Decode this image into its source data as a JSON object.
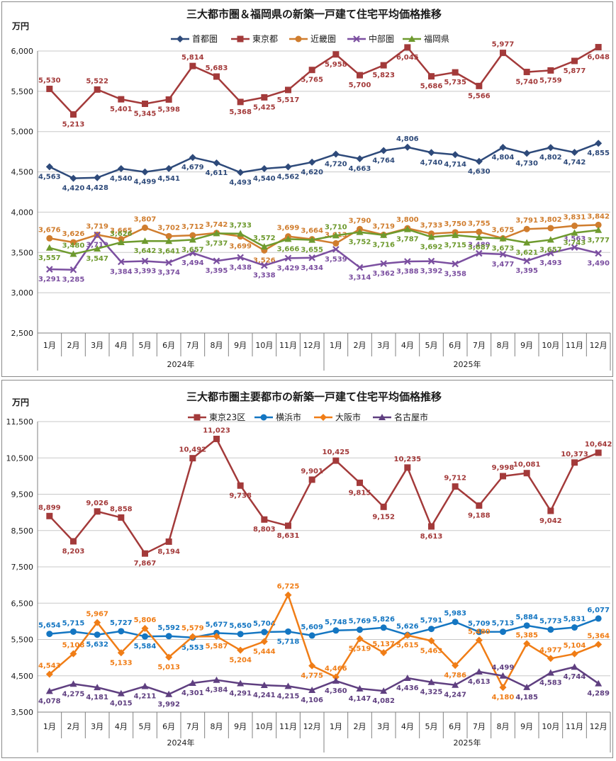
{
  "colors": {
    "navy": "#2E4A7A",
    "red": "#A33A3A",
    "orange": "#D07D2E",
    "purple": "#7B4FA0",
    "green": "#6E9A2E",
    "blue": "#1476C2",
    "orange2": "#F07D16",
    "plum": "#5F3F80"
  },
  "chart_data": [
    {
      "type": "line",
      "title": "三大都市圏＆福岡県の新築一戸建て住宅平均価格推移",
      "ylabel": "万円",
      "ylim": [
        2500,
        6000
      ],
      "yticks": [
        "2,500",
        "3,000",
        "3,500",
        "4,000",
        "4,500",
        "5,000",
        "5,500",
        "6,000"
      ],
      "ytick_values": [
        2500,
        3000,
        3500,
        4000,
        4500,
        5000,
        5500,
        6000
      ],
      "categories": [
        "1月",
        "2月",
        "3月",
        "4月",
        "5月",
        "6月",
        "7月",
        "8月",
        "9月",
        "10月",
        "11月",
        "12月",
        "1月",
        "2月",
        "3月",
        "4月",
        "5月",
        "6月",
        "7月",
        "8月",
        "9月",
        "10月",
        "11月",
        "12月"
      ],
      "years": [
        "2024年",
        "2025年"
      ],
      "grid": true,
      "legend": "top",
      "series": [
        {
          "name": "首都圏",
          "color": "#2E4A7A",
          "marker": "diamond",
          "values": [
            4563,
            4420,
            4428,
            4540,
            4499,
            4541,
            4679,
            4611,
            4493,
            4540,
            4562,
            4620,
            4720,
            4663,
            4764,
            4806,
            4740,
            4714,
            4630,
            4804,
            4730,
            4802,
            4742,
            4855
          ],
          "labels": [
            "4,563",
            "4,420",
            "4,428",
            "4,540",
            "4,499",
            "4,541",
            "4,679",
            "4,611",
            "4,493",
            "4,540",
            "4,562",
            "4,620",
            "4,720",
            "4,663",
            "4,764",
            "4,806",
            "4,740",
            "4,714",
            "4,630",
            "4,804",
            "4,730",
            "4,802",
            "4,742",
            "4,855"
          ],
          "label_pos": [
            "below",
            "below",
            "below",
            "below",
            "below",
            "below",
            "below",
            "below",
            "below",
            "below",
            "below",
            "below",
            "below",
            "below",
            "below",
            "above",
            "below",
            "below",
            "below",
            "below",
            "below",
            "below",
            "below",
            "below"
          ]
        },
        {
          "name": "東京都",
          "color": "#A33A3A",
          "marker": "square",
          "values": [
            5530,
            5213,
            5522,
            5401,
            5345,
            5398,
            5814,
            5683,
            5368,
            5425,
            5517,
            5765,
            5958,
            5700,
            5823,
            6045,
            5686,
            5735,
            5566,
            5977,
            5740,
            5759,
            5877,
            6048
          ],
          "labels": [
            "5,530",
            "5,213",
            "5,522",
            "5,401",
            "5,345",
            "5,398",
            "5,814",
            "5,683",
            "5,368",
            "5,425",
            "5,517",
            "5,765",
            "5,958",
            "5,700",
            "5,823",
            "6,045",
            "5,686",
            "5,735",
            "5,566",
            "5,977",
            "5,740",
            "5,759",
            "5,877",
            "6,048"
          ],
          "label_pos": [
            "above",
            "below",
            "above",
            "below",
            "below",
            "below",
            "above",
            "above",
            "below",
            "below",
            "below",
            "below",
            "below",
            "below",
            "below",
            "below",
            "below",
            "below",
            "below",
            "above",
            "below",
            "below",
            "below",
            "below"
          ]
        },
        {
          "name": "近畿圏",
          "color": "#D07D2E",
          "marker": "circle",
          "values": [
            3676,
            3626,
            3719,
            3665,
            3807,
            3702,
            3712,
            3742,
            3699,
            3526,
            3699,
            3664,
            3613,
            3790,
            3719,
            3800,
            3733,
            3750,
            3755,
            3675,
            3791,
            3802,
            3831,
            3842
          ],
          "labels": [
            "3,676",
            "3,626",
            "3,719",
            "3,665",
            "3,807",
            "3,702",
            "3,712",
            "3,742",
            "3,699",
            "3,526",
            "3,699",
            "3,664",
            "3,613",
            "3,790",
            "3,719",
            "3,800",
            "3,733",
            "3,750",
            "3,755",
            "3,675",
            "3,791",
            "3,802",
            "3,831",
            "3,842"
          ],
          "label_pos": [
            "above",
            "above",
            "above",
            "above",
            "above",
            "above",
            "above",
            "above",
            "below",
            "below",
            "above",
            "above",
            "above",
            "above",
            "above",
            "above",
            "above",
            "above",
            "above",
            "above",
            "above",
            "above",
            "above",
            "above"
          ]
        },
        {
          "name": "中部圏",
          "color": "#7B4FA0",
          "marker": "x",
          "values": [
            3291,
            3285,
            3719,
            3384,
            3393,
            3374,
            3494,
            3395,
            3438,
            3338,
            3429,
            3434,
            3539,
            3314,
            3362,
            3388,
            3392,
            3358,
            3489,
            3477,
            3395,
            3493,
            3563,
            3490
          ],
          "labels": [
            "3,291",
            "3,285",
            "3,719",
            "3,384",
            "3,393",
            "3,374",
            "3,494",
            "3,395",
            "3,438",
            "3,338",
            "3,429",
            "3,434",
            "3,539",
            "3,314",
            "3,362",
            "3,388",
            "3,392",
            "3,358",
            "3,489",
            "3,477",
            "3,395",
            "3,493",
            "3,563",
            "3,490"
          ],
          "label_pos": [
            "below",
            "below",
            "below",
            "below",
            "below",
            "below",
            "below",
            "below",
            "below",
            "below",
            "below",
            "below",
            "below",
            "below",
            "below",
            "below",
            "below",
            "below",
            "above",
            "below",
            "below",
            "below",
            "above",
            "below"
          ]
        },
        {
          "name": "福岡県",
          "color": "#6E9A2E",
          "marker": "triangle",
          "values": [
            3557,
            3480,
            3547,
            3626,
            3642,
            3641,
            3657,
            3737,
            3733,
            3572,
            3666,
            3655,
            3710,
            3752,
            3716,
            3787,
            3692,
            3715,
            3687,
            3673,
            3621,
            3657,
            3743,
            3777
          ],
          "labels": [
            "3,557",
            "3,480",
            "3,547",
            "3,626",
            "3,642",
            "3,641",
            "3,657",
            "3,737",
            "3,733",
            "3,572",
            "3,666",
            "3,655",
            "3,710",
            "3,752",
            "3,716",
            "3,787",
            "3,692",
            "3,715",
            "3,687",
            "3,673",
            "3,621",
            "3,657",
            "3,743",
            "3,777"
          ],
          "label_pos": [
            "below",
            "above",
            "below",
            "above",
            "below",
            "below",
            "below",
            "below",
            "above",
            "above",
            "below",
            "below",
            "above",
            "below",
            "below",
            "below",
            "below",
            "below",
            "below",
            "below",
            "below",
            "below",
            "below",
            "below"
          ]
        }
      ]
    },
    {
      "type": "line",
      "title": "三大都市圏主要都市の新築一戸建て住宅平均価格推移",
      "ylabel": "万円",
      "ylim": [
        3500,
        11500
      ],
      "yticks": [
        "3,500",
        "4,500",
        "5,500",
        "6,500",
        "7,500",
        "8,500",
        "9,500",
        "10,500",
        "11,500"
      ],
      "ytick_values": [
        3500,
        4500,
        5500,
        6500,
        7500,
        8500,
        9500,
        10500,
        11500
      ],
      "categories": [
        "1月",
        "2月",
        "3月",
        "4月",
        "5月",
        "6月",
        "7月",
        "8月",
        "9月",
        "10月",
        "11月",
        "12月",
        "1月",
        "2月",
        "3月",
        "4月",
        "5月",
        "6月",
        "7月",
        "8月",
        "9月",
        "10月",
        "11月",
        "12月"
      ],
      "years": [
        "2024年",
        "2025年"
      ],
      "grid": true,
      "legend": "top",
      "series": [
        {
          "name": "東京23区",
          "color": "#A33A3A",
          "marker": "square",
          "values": [
            8899,
            8203,
            9026,
            8858,
            7867,
            8194,
            10492,
            11023,
            9738,
            8803,
            8631,
            9901,
            10425,
            9815,
            9152,
            10235,
            8613,
            9712,
            9188,
            9998,
            10081,
            9042,
            10373,
            10642
          ],
          "labels": [
            "8,899",
            "8,203",
            "9,026",
            "8,858",
            "7,867",
            "8,194",
            "10,492",
            "11,023",
            "9,738",
            "8,803",
            "8,631",
            "9,901",
            "10,425",
            "9,815",
            "9,152",
            "10,235",
            "8,613",
            "9,712",
            "9,188",
            "9,998",
            "10,081",
            "9,042",
            "10,373",
            "10,642"
          ],
          "label_pos": [
            "above",
            "below",
            "above",
            "above",
            "below",
            "below",
            "above",
            "above",
            "below",
            "below",
            "below",
            "above",
            "above",
            "below",
            "below",
            "above",
            "below",
            "above",
            "below",
            "above",
            "above",
            "below",
            "above",
            "above"
          ]
        },
        {
          "name": "横浜市",
          "color": "#1476C2",
          "marker": "circle",
          "values": [
            5654,
            5715,
            5632,
            5727,
            5584,
            5592,
            5553,
            5677,
            5650,
            5704,
            5718,
            5609,
            5748,
            5769,
            5826,
            5626,
            5791,
            5983,
            5709,
            5713,
            5884,
            5773,
            5831,
            6077
          ],
          "labels": [
            "5,654",
            "5,715",
            "5,632",
            "5,727",
            "5,584",
            "5,592",
            "5,553",
            "5,677",
            "5,650",
            "5,704",
            "5,718",
            "5,609",
            "5,748",
            "5,769",
            "5,826",
            "5,626",
            "5,791",
            "5,983",
            "5,709",
            "5,713",
            "5,884",
            "5,773",
            "5,831",
            "6,077"
          ],
          "label_pos": [
            "above",
            "above",
            "below",
            "above",
            "below",
            "above",
            "below",
            "above",
            "above",
            "above",
            "below",
            "above",
            "above",
            "above",
            "above",
            "above",
            "above",
            "above",
            "above",
            "above",
            "above",
            "above",
            "above",
            "above"
          ]
        },
        {
          "name": "大阪市",
          "color": "#F07D16",
          "marker": "diamond",
          "values": [
            4543,
            5108,
            5967,
            5133,
            5806,
            5013,
            5579,
            5587,
            5204,
            5444,
            6725,
            4775,
            4466,
            5519,
            5137,
            5615,
            5463,
            4786,
            5480,
            4180,
            5385,
            4977,
            5104,
            5364
          ],
          "labels": [
            "4,543",
            "5,108",
            "5,967",
            "5,133",
            "5,806",
            "5,013",
            "5,579",
            "5,587",
            "5,204",
            "5,444",
            "6,725",
            "4,775",
            "4,466",
            "5,519",
            "5,137",
            "5,615",
            "5,463",
            "4,786",
            "5,480",
            "4,180",
            "5,385",
            "4,977",
            "5,104",
            "5,364"
          ],
          "label_pos": [
            "above",
            "above",
            "above",
            "below",
            "above",
            "below",
            "above",
            "below",
            "below",
            "below",
            "above",
            "below",
            "above",
            "below",
            "above",
            "below",
            "below",
            "below",
            "above",
            "below",
            "above",
            "above",
            "above",
            "above"
          ]
        },
        {
          "name": "名古屋市",
          "color": "#5F3F80",
          "marker": "triangle",
          "values": [
            4078,
            4275,
            4181,
            4015,
            4211,
            3992,
            4301,
            4384,
            4291,
            4241,
            4215,
            4106,
            4360,
            4147,
            4082,
            4436,
            4325,
            4247,
            4613,
            4499,
            4185,
            4583,
            4744,
            4289
          ],
          "labels": [
            "4,078",
            "4,275",
            "4,181",
            "4,015",
            "4,211",
            "3,992",
            "4,301",
            "4,384",
            "4,291",
            "4,241",
            "4,215",
            "4,106",
            "4,360",
            "4,147",
            "4,082",
            "4,436",
            "4,325",
            "4,247",
            "4,613",
            "4,499",
            "4,185",
            "4,583",
            "4,744",
            "4,289"
          ],
          "label_pos": [
            "below",
            "below",
            "below",
            "below",
            "below",
            "below",
            "below",
            "below",
            "below",
            "below",
            "below",
            "below",
            "below",
            "below",
            "below",
            "below",
            "below",
            "below",
            "below",
            "above",
            "below",
            "below",
            "below",
            "below"
          ]
        }
      ]
    }
  ]
}
